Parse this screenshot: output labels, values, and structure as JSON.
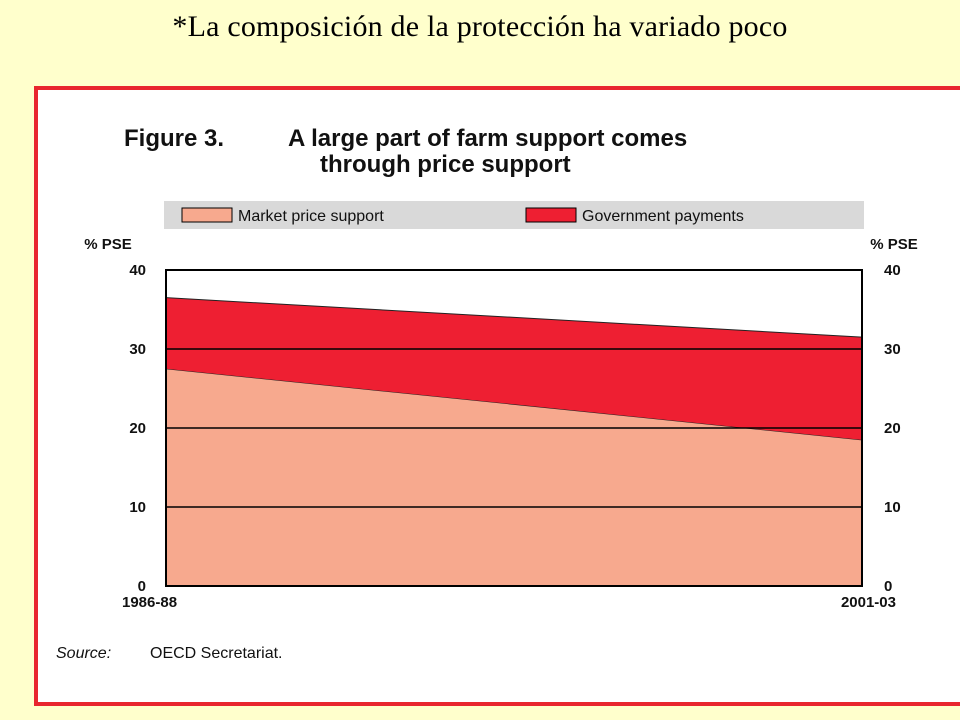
{
  "slide_title": "*La composición de la protección ha variado poco",
  "chart_data": {
    "type": "area",
    "title_prefix": "Figure 3.",
    "title_line1": "A large part of farm support comes",
    "title_line2": "through price support",
    "y_unit_left": "% PSE",
    "y_unit_right": "% PSE",
    "ylim": [
      0,
      40
    ],
    "y_ticks": [
      0,
      10,
      20,
      30,
      40
    ],
    "x": [
      "1986-88",
      "2001-03"
    ],
    "stacked": true,
    "series": [
      {
        "name": "Market price support",
        "values": [
          27.5,
          18.5
        ],
        "color": "#f7a98e"
      },
      {
        "name": "Government payments",
        "values": [
          9.0,
          13.0
        ],
        "color": "#ee1f32"
      }
    ],
    "grid": true,
    "legend_position": "top",
    "source_label": "Source:",
    "source_text": "OECD Secretariat."
  },
  "colors": {
    "background": "#ffffcc",
    "frame": "#e8262e",
    "legend_bg": "#d9d9d9"
  }
}
